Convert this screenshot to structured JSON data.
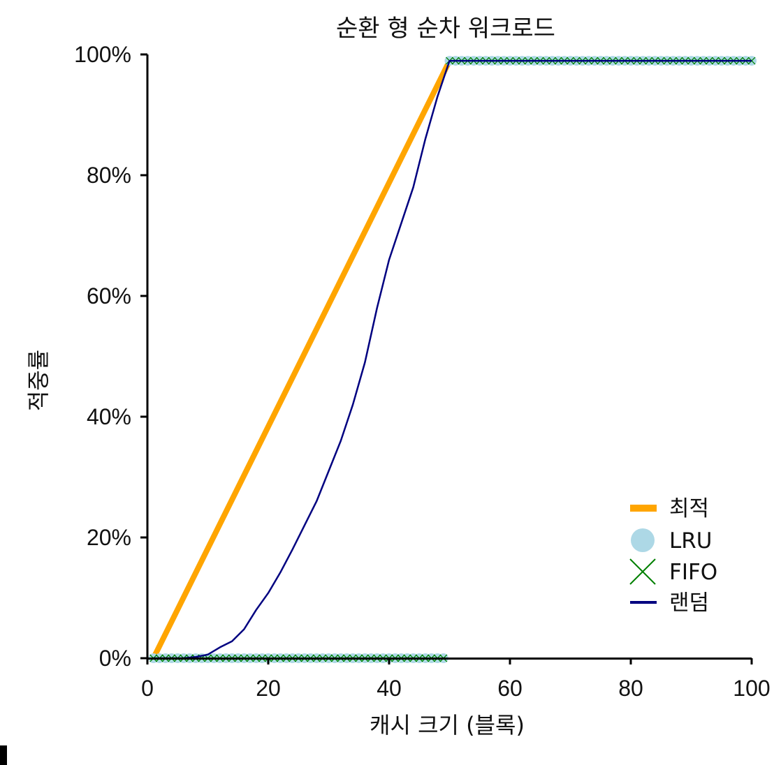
{
  "chart_data": {
    "type": "line",
    "title": "순환 형 순차 워크로드",
    "xlabel": "캐시 크기 (블록)",
    "ylabel": "적중률",
    "xlim": [
      0,
      100
    ],
    "ylim": [
      0,
      100
    ],
    "xticks": [
      "0",
      "20",
      "40",
      "60",
      "80",
      "100"
    ],
    "yticks": [
      "0%",
      "20%",
      "40%",
      "60%",
      "80%",
      "100%"
    ],
    "grid": false,
    "legend_position": "bottom-right",
    "series": [
      {
        "name": "최적",
        "style": "thick-line",
        "color": "#ffa500",
        "x": [
          1,
          50,
          100
        ],
        "y": [
          0,
          98.95,
          98.95
        ]
      },
      {
        "name": "LRU",
        "style": "circle-markers",
        "color": "#add8e6",
        "x_ranges": [
          [
            1,
            49,
            0
          ],
          [
            50,
            100,
            98.95
          ]
        ]
      },
      {
        "name": "FIFO",
        "style": "x-markers",
        "color": "#008000",
        "x_ranges": [
          [
            1,
            49,
            0
          ],
          [
            50,
            100,
            98.95
          ]
        ]
      },
      {
        "name": "랜덤",
        "style": "thin-line",
        "color": "#000080",
        "x": [
          1,
          4,
          6,
          8,
          10,
          12,
          14,
          16,
          18,
          20,
          22,
          24,
          26,
          28,
          30,
          32,
          34,
          36,
          38,
          40,
          42,
          44,
          46,
          48,
          50,
          60,
          70,
          80,
          90,
          100
        ],
        "y": [
          0,
          0,
          0,
          0.2,
          0.6,
          1.8,
          2.8,
          4.8,
          8.0,
          10.8,
          14.2,
          18.0,
          22.0,
          26.0,
          31.0,
          36.0,
          42.0,
          49.0,
          58.0,
          66.0,
          72.0,
          78.0,
          86.0,
          93.0,
          98.95,
          98.95,
          98.95,
          98.95,
          98.95,
          98.95
        ]
      }
    ]
  }
}
